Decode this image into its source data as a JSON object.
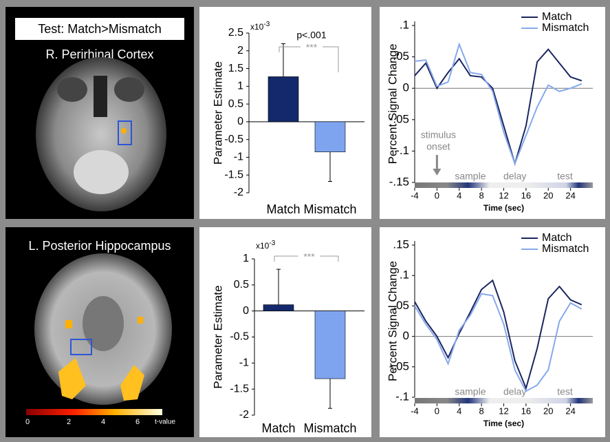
{
  "brain_panels": [
    {
      "header": "Test: Match>Mismatch",
      "label": "R. Perirhinal Cortex"
    },
    {
      "label": "L. Posterior Hippocampus",
      "colorbar": {
        "ticks": [
          "0",
          "2",
          "4",
          "6"
        ],
        "title": "t-value"
      }
    }
  ],
  "chart_data": [
    {
      "type": "bar",
      "ylabel": "Parameter Estimate",
      "multiplier": "x10",
      "multiplier_exponent": "-3",
      "categories": [
        "Match",
        "Mismatch"
      ],
      "values": [
        1.27,
        -0.85
      ],
      "errors": [
        0.93,
        0.83
      ],
      "colors": [
        "#14296b",
        "#7ea4ef"
      ],
      "significance": "***",
      "p_label": "p<.001",
      "ylim": [
        -2,
        2.5
      ],
      "yticks": [
        2.5,
        2,
        1.5,
        1,
        0.5,
        0,
        -0.5,
        -1,
        -1.5,
        -2
      ]
    },
    {
      "type": "line",
      "ylabel": "Percent Signal Change",
      "xlabel": "Time (sec)",
      "annotation": [
        "stimulus",
        "onset"
      ],
      "phases": [
        "sample",
        "delay",
        "test"
      ],
      "x": [
        -4,
        -2,
        0,
        2,
        4,
        6,
        8,
        10,
        12,
        14,
        16,
        18,
        20,
        22,
        24,
        26
      ],
      "series": [
        {
          "name": "Match",
          "color": "#1a2560",
          "values": [
            0.02,
            0.04,
            0.0,
            0.025,
            0.047,
            0.02,
            0.018,
            0.0,
            -0.06,
            -0.12,
            -0.06,
            0.042,
            0.062,
            0.04,
            0.018,
            0.012
          ]
        },
        {
          "name": "Mismatch",
          "color": "#86a8ec",
          "values": [
            0.043,
            0.045,
            0.003,
            0.01,
            0.07,
            0.025,
            0.022,
            -0.005,
            -0.07,
            -0.12,
            -0.075,
            -0.03,
            0.005,
            -0.005,
            0.0,
            0.007
          ]
        }
      ],
      "xlim": [
        -4,
        28
      ],
      "xticks": [
        -4,
        0,
        4,
        8,
        12,
        16,
        20,
        24
      ],
      "ylim": [
        -0.15,
        0.1
      ],
      "yticks": [
        {
          "value": 0.1,
          "label": ".1"
        },
        {
          "value": 0.05,
          "label": ".05"
        },
        0,
        {
          "value": -0.05,
          "label": "-.05"
        },
        {
          "value": -0.1,
          "label": "-.1"
        },
        {
          "value": -0.15,
          "label": "-.15"
        }
      ]
    },
    {
      "type": "bar",
      "ylabel": "Parameter Estimate",
      "multiplier": "x10",
      "multiplier_exponent": "-3",
      "categories": [
        "Match",
        "Mismatch"
      ],
      "values": [
        0.12,
        -1.3
      ],
      "errors": [
        0.68,
        0.57
      ],
      "colors": [
        "#14296b",
        "#7ea4ef"
      ],
      "significance": "***",
      "ylim": [
        -2,
        1
      ],
      "yticks": [
        1,
        0.5,
        0,
        -0.5,
        -1,
        -1.5,
        -2
      ]
    },
    {
      "type": "line",
      "ylabel": "Percent Signal Change",
      "xlabel": "Time (sec)",
      "phases": [
        "sample",
        "delay",
        "test"
      ],
      "x": [
        -4,
        -2,
        0,
        2,
        4,
        6,
        8,
        10,
        12,
        14,
        16,
        18,
        20,
        22,
        24,
        26
      ],
      "series": [
        {
          "name": "Match",
          "color": "#1a2560",
          "values": [
            0.057,
            0.025,
            0.0,
            -0.035,
            0.005,
            0.04,
            0.077,
            0.092,
            0.04,
            -0.04,
            -0.085,
            -0.02,
            0.062,
            0.082,
            0.06,
            0.052
          ]
        },
        {
          "name": "Mismatch",
          "color": "#86a8ec",
          "values": [
            0.05,
            0.02,
            -0.005,
            -0.045,
            0.01,
            0.035,
            0.07,
            0.067,
            0.02,
            -0.055,
            -0.09,
            -0.08,
            -0.055,
            0.025,
            0.055,
            0.045
          ]
        }
      ],
      "xlim": [
        -4,
        28
      ],
      "xticks": [
        -4,
        0,
        4,
        8,
        12,
        16,
        20,
        24
      ],
      "ylim": [
        -0.1,
        0.15
      ],
      "yticks": [
        {
          "value": 0.15,
          "label": ".15"
        },
        {
          "value": 0.1,
          "label": ".1"
        },
        {
          "value": 0.05,
          "label": ".05"
        },
        0,
        {
          "value": -0.05,
          "label": "-.05"
        },
        {
          "value": -0.1,
          "label": "-.1"
        }
      ]
    }
  ]
}
